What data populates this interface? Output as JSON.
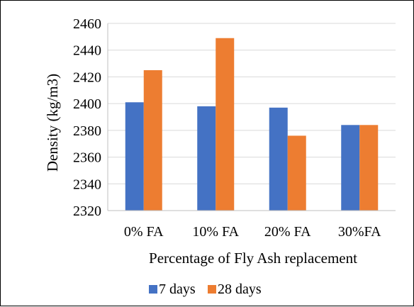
{
  "chart_data": {
    "type": "bar",
    "title": "",
    "xlabel": "Percentage of Fly Ash replacement",
    "ylabel": "Density (kg/m3)",
    "categories": [
      "0% FA",
      "10% FA",
      "20% FA",
      "30%FA"
    ],
    "series": [
      {
        "name": "7 days",
        "color": "#4472c4",
        "values": [
          2401,
          2398,
          2397,
          2384
        ]
      },
      {
        "name": "28 days",
        "color": "#ed7d31",
        "values": [
          2425,
          2449,
          2376,
          2384
        ]
      }
    ],
    "ylim": [
      2320,
      2460
    ],
    "yticks": [
      "2320",
      "2340",
      "2360",
      "2380",
      "2400",
      "2420",
      "2440",
      "2460"
    ],
    "grid": true,
    "legend_position": "bottom"
  }
}
